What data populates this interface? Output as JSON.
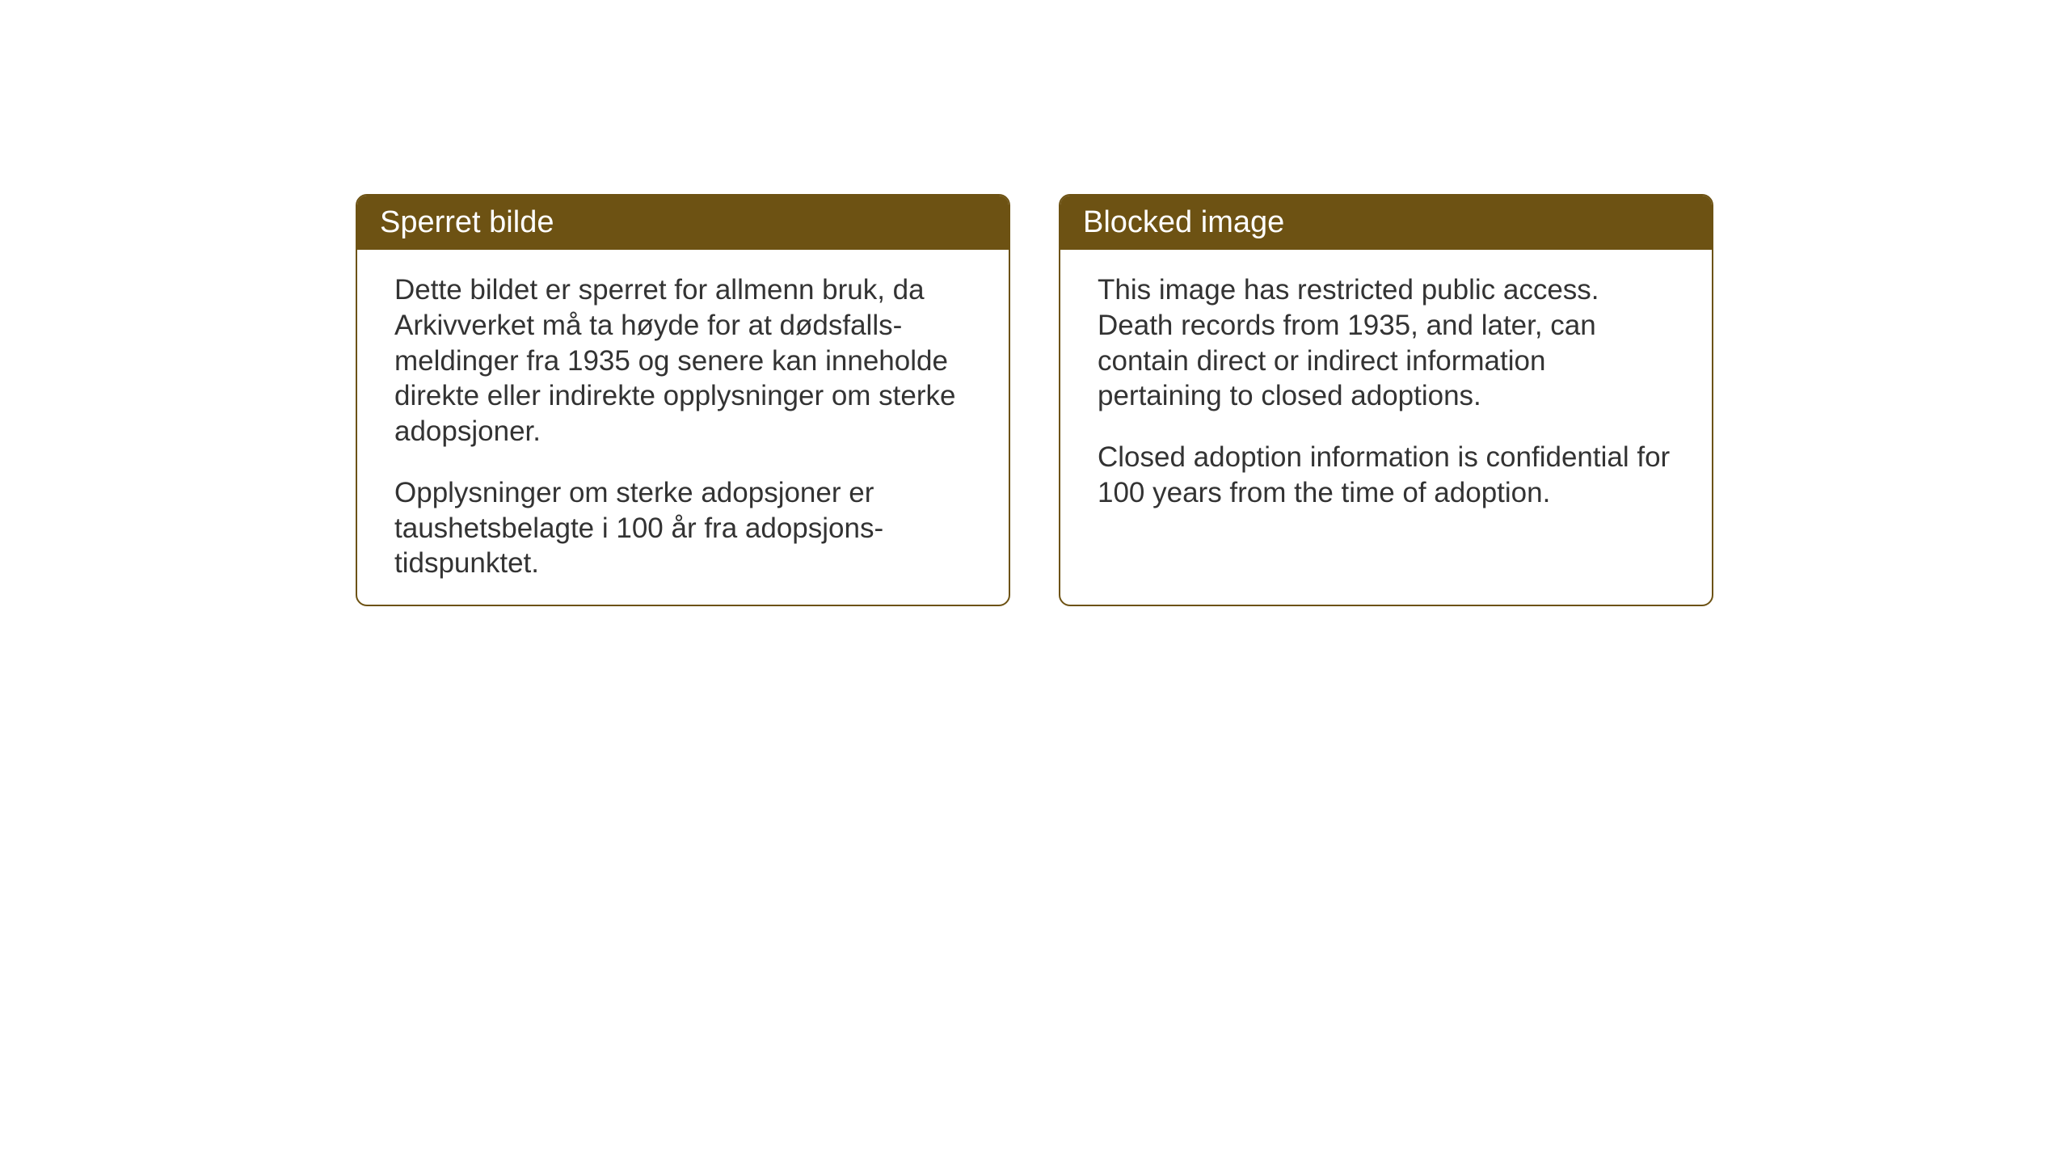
{
  "cards": {
    "norwegian": {
      "title": "Sperret bilde",
      "paragraph1": "Dette bildet er sperret for allmenn bruk, da Arkivverket må ta høyde for at dødsfalls-meldinger fra 1935 og senere kan inneholde direkte eller indirekte opplysninger om sterke adopsjoner.",
      "paragraph2": "Opplysninger om sterke adopsjoner er taushetsbelagte i 100 år fra adopsjons-tidspunktet."
    },
    "english": {
      "title": "Blocked image",
      "paragraph1": "This image has restricted public access. Death records from 1935, and later, can contain direct or indirect information pertaining to closed adoptions.",
      "paragraph2": "Closed adoption information is confidential for 100 years from the time of adoption."
    }
  },
  "styling": {
    "header_bg_color": "#6d5213",
    "header_text_color": "#ffffff",
    "border_color": "#6d5213",
    "body_text_color": "#333333",
    "background_color": "#ffffff",
    "border_radius": 14,
    "title_fontsize": 38,
    "body_fontsize": 35
  }
}
